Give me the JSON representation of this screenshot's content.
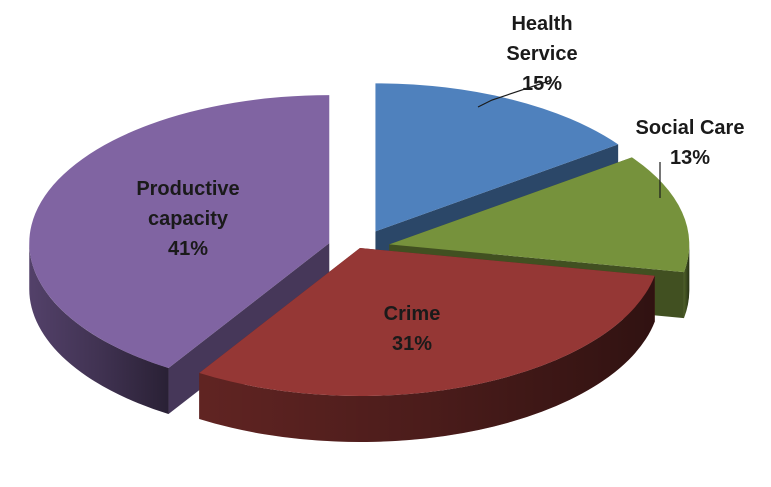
{
  "chart_data": {
    "type": "pie",
    "style": "3d-exploded",
    "slices": [
      {
        "name": "Health Service",
        "label_lines": [
          "Health",
          "Service"
        ],
        "value": 15,
        "value_label": "15%",
        "color": "#4f81bd",
        "leader_line": true
      },
      {
        "name": "Social Care",
        "label_lines": [
          "Social Care"
        ],
        "value": 13,
        "value_label": "13%",
        "color": "#76923c",
        "leader_line": true
      },
      {
        "name": "Crime",
        "label_lines": [
          "Crime"
        ],
        "value": 31,
        "value_label": "31%",
        "color": "#953735",
        "leader_line": false
      },
      {
        "name": "Productive capacity",
        "label_lines": [
          "Productive",
          "capacity"
        ],
        "value": 41,
        "value_label": "41%",
        "color": "#8064a2",
        "leader_line": false
      }
    ],
    "legend": "none"
  }
}
